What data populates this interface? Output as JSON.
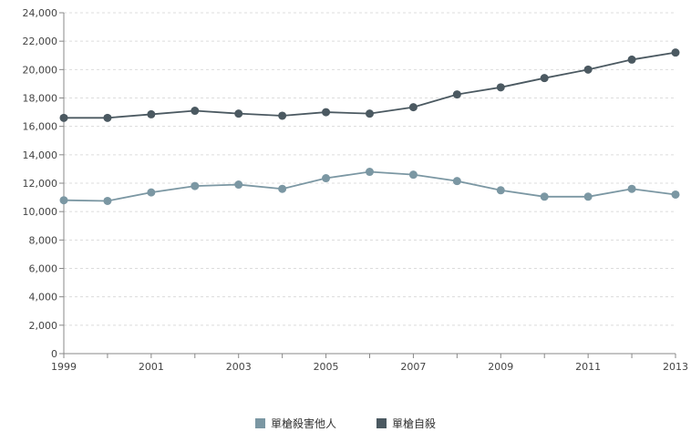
{
  "colors": {
    "series_homicide": "#7b97a3",
    "series_suicide": "#4b5961",
    "grid": "#dcdcdc",
    "axis": "#888888"
  },
  "chart_data": {
    "type": "line",
    "title": "",
    "xlabel": "",
    "ylabel": "",
    "x": [
      1999,
      2000,
      2001,
      2002,
      2003,
      2004,
      2005,
      2006,
      2007,
      2008,
      2009,
      2010,
      2011,
      2012,
      2013
    ],
    "x_tick_labels": [
      "1999",
      "2001",
      "2003",
      "2005",
      "2007",
      "2009",
      "2011",
      "2013"
    ],
    "y_tick_labels": [
      "0",
      "2,000",
      "4,000",
      "6,000",
      "8,000",
      "10,000",
      "12,000",
      "14,000",
      "16,000",
      "18,000",
      "20,000",
      "22,000",
      "24,000"
    ],
    "ylim": [
      0,
      24000
    ],
    "grid": true,
    "legend_position": "bottom-center",
    "series": [
      {
        "name": "槍殺害他人",
        "legend_label": "單槍殺害他人",
        "color": "#7b97a3",
        "values": [
          10800,
          10750,
          11350,
          11800,
          11900,
          11600,
          12350,
          12800,
          12600,
          12150,
          11500,
          11050,
          11050,
          11600,
          11200
        ]
      },
      {
        "name": "槍自殺",
        "legend_label": "單槍自殺",
        "color": "#4b5961",
        "values": [
          16600,
          16600,
          16850,
          17100,
          16900,
          16750,
          17000,
          16900,
          17350,
          18250,
          18750,
          19400,
          20000,
          20700,
          21200
        ]
      }
    ]
  }
}
